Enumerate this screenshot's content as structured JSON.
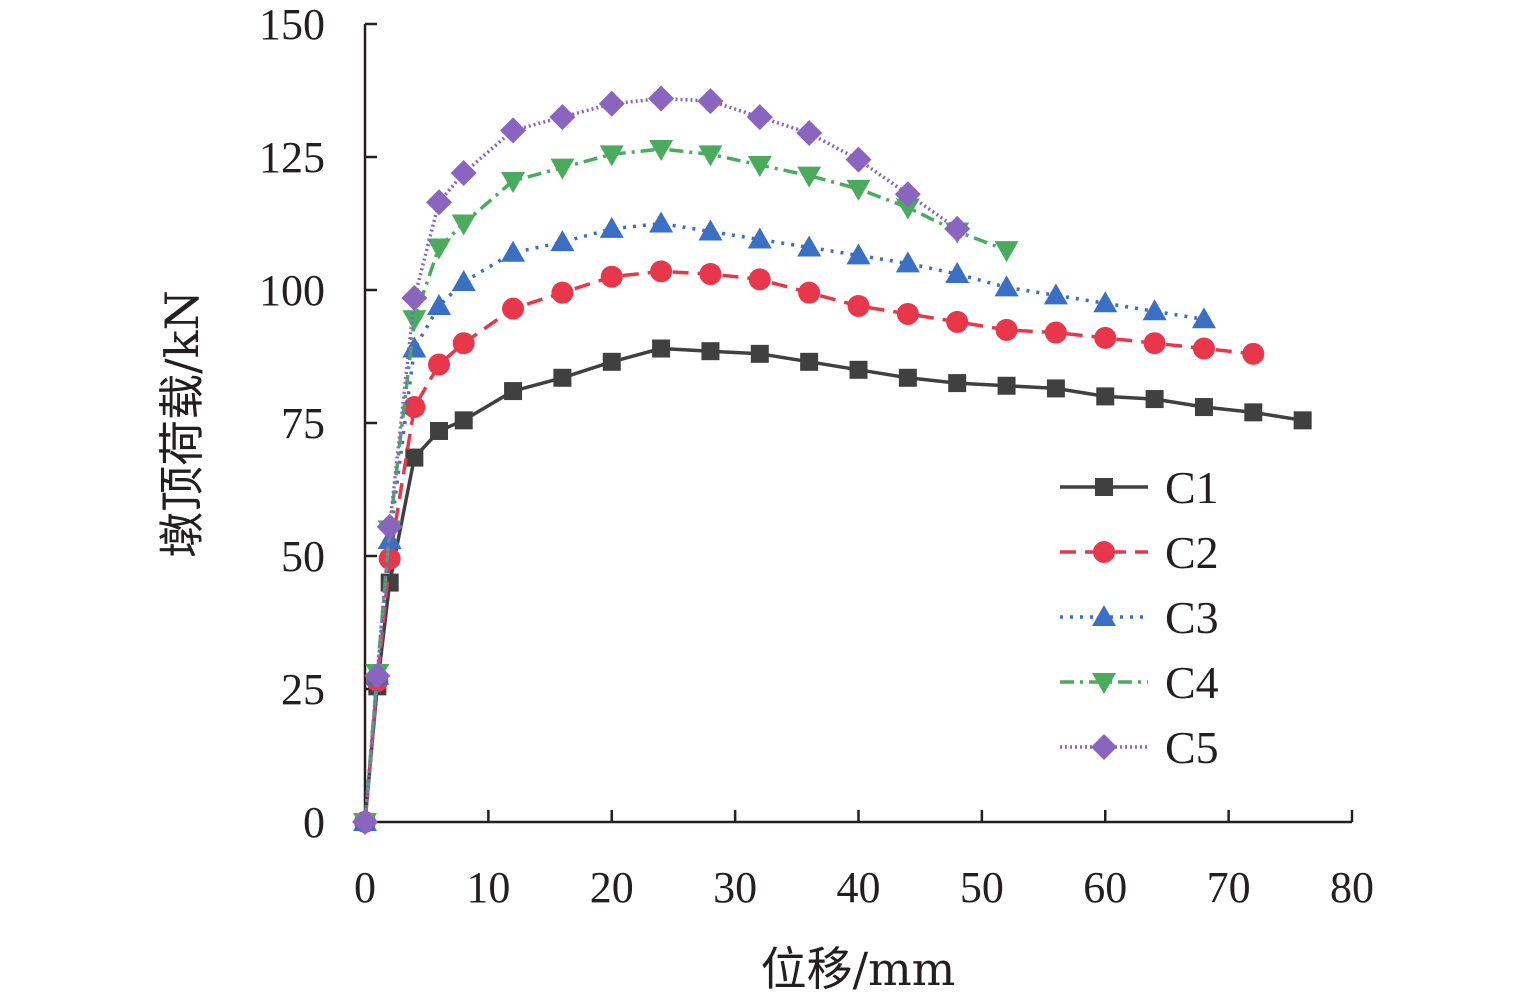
{
  "chart_data": {
    "type": "line",
    "title": "",
    "xlabel": "位移/mm",
    "ylabel": "墩顶荷载/kN",
    "xlim": [
      0,
      80
    ],
    "ylim": [
      0,
      150
    ],
    "xticks": [
      0,
      10,
      20,
      30,
      40,
      50,
      60,
      70,
      80
    ],
    "yticks": [
      0,
      25,
      50,
      75,
      100,
      125,
      150
    ],
    "grid": false,
    "legend_position": "right",
    "series": [
      {
        "name": "C1",
        "color": "#404040",
        "line_style": "solid",
        "marker": "square",
        "x": [
          0,
          1,
          2,
          4,
          6,
          8,
          12,
          16,
          20,
          24,
          28,
          32,
          36,
          40,
          44,
          48,
          52,
          56,
          60,
          64,
          68,
          72,
          76
        ],
        "y": [
          0,
          25.5,
          45,
          68.5,
          73.5,
          75.5,
          81,
          83.5,
          86.5,
          89,
          88.5,
          88,
          86.5,
          85,
          83.5,
          82.5,
          82,
          81.5,
          80,
          79.5,
          78,
          77,
          75.5
        ]
      },
      {
        "name": "C2",
        "color": "#e8374a",
        "line_style": "dashed",
        "marker": "circle",
        "x": [
          0,
          1,
          2,
          4,
          6,
          8,
          12,
          16,
          20,
          24,
          28,
          32,
          36,
          40,
          44,
          48,
          52,
          56,
          60,
          64,
          68,
          72
        ],
        "y": [
          0,
          26.5,
          49.5,
          78,
          86,
          90,
          96.5,
          99.5,
          102.5,
          103.5,
          103,
          102,
          99.5,
          97,
          95.5,
          94,
          92.5,
          92,
          91,
          90,
          89,
          88
        ]
      },
      {
        "name": "C3",
        "color": "#3a6fc4",
        "line_style": "dotted",
        "marker": "triangle-up",
        "x": [
          0,
          1,
          2,
          4,
          6,
          8,
          12,
          16,
          20,
          24,
          28,
          32,
          36,
          40,
          44,
          48,
          52,
          56,
          60,
          64,
          68
        ],
        "y": [
          0,
          27.5,
          53,
          89,
          97,
          101.5,
          107,
          109,
          111.5,
          112.5,
          111,
          109.5,
          108,
          106.5,
          105,
          103,
          100.5,
          99,
          97.5,
          96,
          94.5
        ]
      },
      {
        "name": "C4",
        "color": "#4aab5e",
        "line_style": "dashdot",
        "marker": "triangle-down",
        "x": [
          0,
          1,
          2,
          4,
          6,
          8,
          12,
          16,
          20,
          24,
          28,
          32,
          36,
          40,
          44,
          48,
          52
        ],
        "y": [
          0,
          28,
          55,
          94.5,
          108,
          112.5,
          120.5,
          123,
          125.5,
          126.5,
          125.5,
          123.5,
          121.5,
          119,
          115.5,
          111,
          107.5
        ]
      },
      {
        "name": "C5",
        "color": "#8a65c0",
        "line_style": "densedot",
        "marker": "diamond",
        "x": [
          0,
          1,
          2,
          4,
          6,
          8,
          12,
          16,
          20,
          24,
          28,
          32,
          36,
          40,
          44,
          48
        ],
        "y": [
          0,
          27.5,
          55.5,
          98.5,
          116.5,
          122,
          130,
          132.5,
          135,
          136,
          135.5,
          132.5,
          129.5,
          124.5,
          118,
          111.5
        ]
      }
    ]
  }
}
